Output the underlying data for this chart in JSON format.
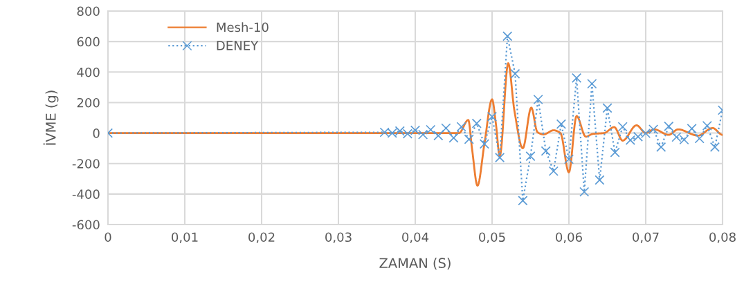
{
  "chart_data": {
    "type": "line",
    "xlabel": "ZAMAN (S)",
    "ylabel": "İVME (g)",
    "xlim": [
      0,
      0.08
    ],
    "xticks": [
      0,
      {
        "value": 0.01,
        "label": "0,01"
      },
      {
        "value": 0.02,
        "label": "0,02"
      },
      {
        "value": 0.03,
        "label": "0,03"
      },
      {
        "value": 0.04,
        "label": "0,04"
      },
      {
        "value": 0.05,
        "label": "0,05"
      },
      {
        "value": 0.06,
        "label": "0,06"
      },
      {
        "value": 0.07,
        "label": "0,07"
      },
      {
        "value": 0.08,
        "label": "0,08"
      }
    ],
    "ylim": [
      -600,
      800
    ],
    "yticks": [
      -600,
      -400,
      -200,
      0,
      200,
      400,
      600,
      800
    ],
    "grid": true,
    "legend": "top left",
    "series": [
      {
        "name": "Mesh-10",
        "color": "#ed7d31",
        "marker": "none",
        "line_style": "solid",
        "x": [
          0,
          0.0457,
          0.0469,
          0.0474,
          0.0481,
          0.049,
          0.05,
          0.0505,
          0.051,
          0.0521,
          0.0529,
          0.054,
          0.0551,
          0.0559,
          0.0567,
          0.058,
          0.0589,
          0.06,
          0.061,
          0.0622,
          0.0631,
          0.0646,
          0.0659,
          0.067,
          0.0688,
          0.07,
          0.0711,
          0.073,
          0.0742,
          0.0768,
          0.0787,
          0.08
        ],
        "values": [
          0,
          0,
          86,
          -107,
          -345,
          -72,
          221,
          59,
          -152,
          458,
          149,
          -100,
          167,
          6,
          -9,
          18,
          0,
          -258,
          112,
          -24,
          -6,
          0,
          39,
          -50,
          51,
          0,
          24,
          -12,
          24,
          -17,
          33,
          -12
        ]
      },
      {
        "name": "DENEY",
        "color": "#5b9bd5",
        "marker": "cross",
        "line_style": "dotted",
        "x": [
          0,
          0.036,
          0.037,
          0.038,
          0.039,
          0.04,
          0.041,
          0.042,
          0.043,
          0.044,
          0.045,
          0.046,
          0.047,
          0.048,
          0.049,
          0.05,
          0.051,
          0.052,
          0.053,
          0.054,
          0.055,
          0.056,
          0.057,
          0.058,
          0.059,
          0.06,
          0.061,
          0.062,
          0.063,
          0.064,
          0.065,
          0.066,
          0.067,
          0.068,
          0.069,
          0.07,
          0.071,
          0.072,
          0.073,
          0.074,
          0.075,
          0.076,
          0.077,
          0.078,
          0.079,
          0.08
        ],
        "values": [
          0,
          5,
          0,
          13,
          -5,
          18,
          -10,
          22,
          -17,
          32,
          -32,
          41,
          -41,
          63,
          -72,
          107,
          -161,
          635,
          388,
          -443,
          -152,
          220,
          -118,
          -250,
          59,
          -172,
          361,
          -386,
          323,
          -308,
          164,
          -127,
          41,
          -47,
          -24,
          -2,
          24,
          -92,
          44,
          -27,
          -44,
          29,
          -36,
          48,
          -92,
          150
        ]
      }
    ]
  }
}
